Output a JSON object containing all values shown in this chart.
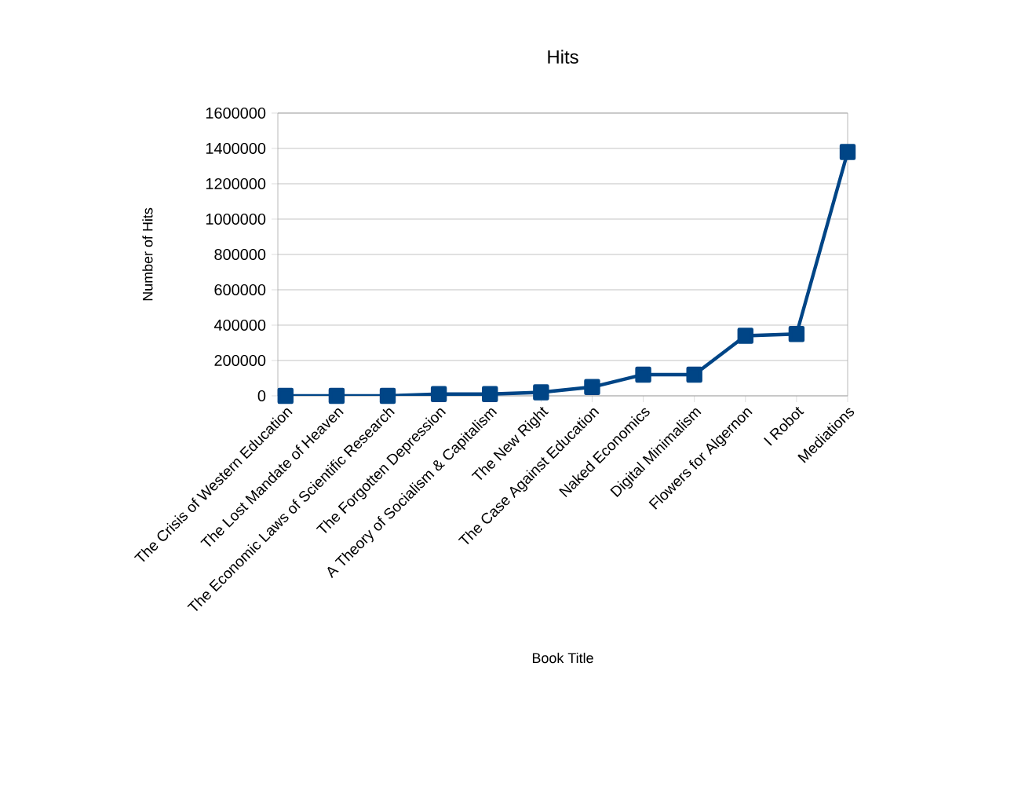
{
  "chart_data": {
    "type": "line",
    "title": "Hits",
    "xlabel": "Book Title",
    "ylabel": "Number of Hits",
    "categories": [
      "The Crisis of Western Education",
      "The Lost Mandate of Heaven",
      "The Economic Laws of Scientific Research",
      "The Forgotten Depression",
      "A Theory of Socialism & Capitalism",
      "The New Right",
      "The Case Against Education",
      "Naked Economics",
      "Digital Minimalism",
      "Flowers for Algernon",
      "I Robot",
      "Mediations"
    ],
    "series": [
      {
        "color": "#004586",
        "values": [
          0,
          0,
          0,
          10000,
          10000,
          20000,
          50000,
          120000,
          120000,
          340000,
          350000,
          1380000
        ]
      }
    ],
    "ylim": [
      0,
      1600000
    ],
    "yticks": [
      0,
      200000,
      400000,
      600000,
      800000,
      1000000,
      1200000,
      1400000,
      1600000
    ],
    "grid": "y",
    "marker": "square",
    "line_style": "solid"
  }
}
